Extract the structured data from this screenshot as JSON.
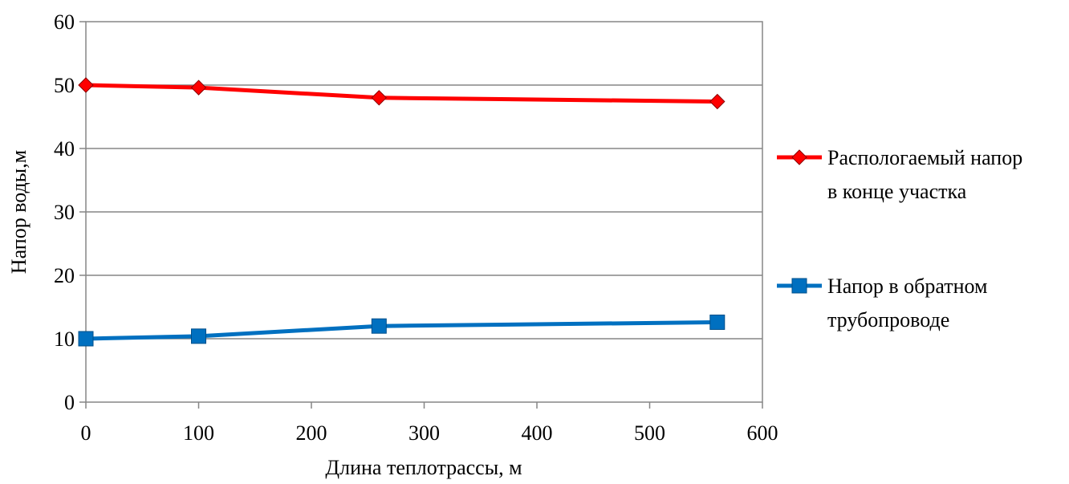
{
  "chart_data": {
    "type": "line",
    "title": "",
    "xlabel": "Длина теплотрассы, м",
    "ylabel": "Напор воды,м",
    "xlim": [
      0,
      600
    ],
    "ylim": [
      0,
      60
    ],
    "xticks": [
      "0",
      "100",
      "200",
      "300",
      "400",
      "500",
      "600"
    ],
    "yticks": [
      "0",
      "10",
      "20",
      "30",
      "40",
      "50",
      "60"
    ],
    "grid": "horizontal",
    "legend_position": "right",
    "series": [
      {
        "name_lines": [
          "Распологаемый напор",
          "в конце участка"
        ],
        "color": "#ff0000",
        "marker": "diamond",
        "x": [
          0,
          100,
          260,
          560
        ],
        "y": [
          50,
          49.6,
          48,
          47.4
        ]
      },
      {
        "name_lines": [
          "Напор в обратном",
          "трубопроводе"
        ],
        "color": "#0070c0",
        "marker": "square",
        "x": [
          0,
          100,
          260,
          560
        ],
        "y": [
          10,
          10.4,
          12,
          12.6
        ]
      }
    ]
  }
}
